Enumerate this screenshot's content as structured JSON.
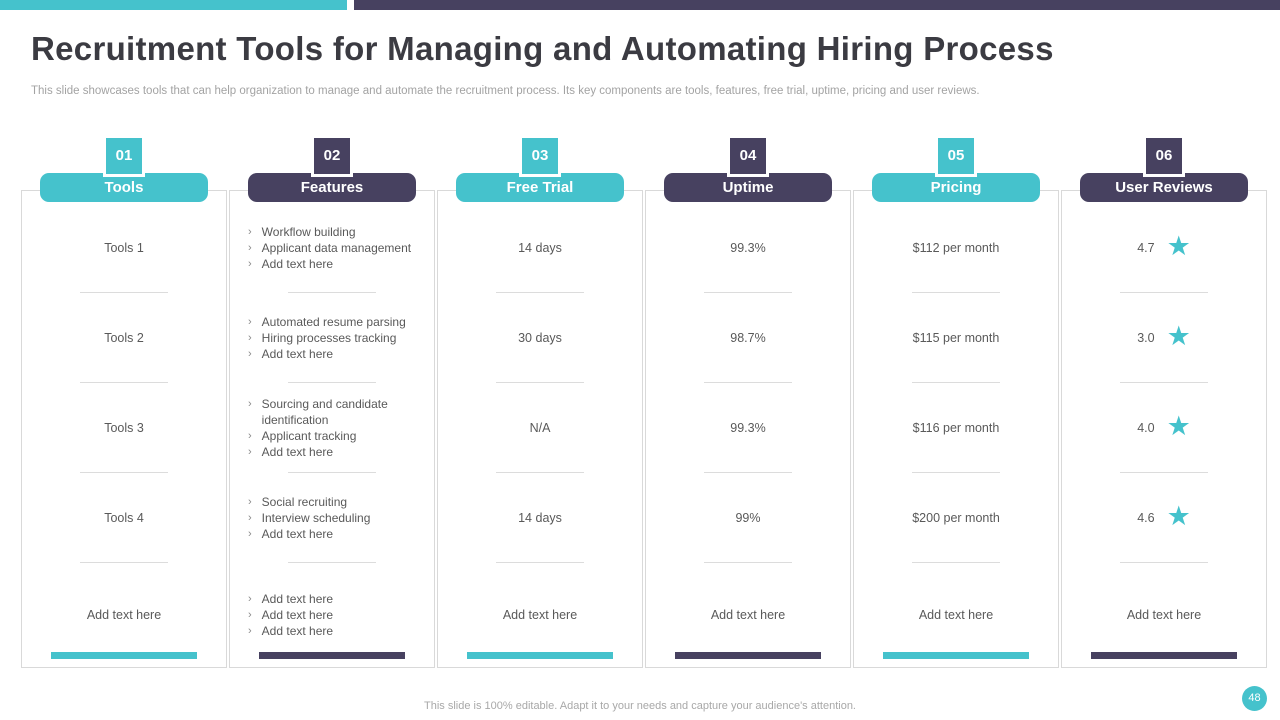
{
  "colors": {
    "teal": "#45C2CC",
    "navy": "#474160"
  },
  "glyphs": {
    "bullet": "›",
    "star": "★"
  },
  "header": {
    "title": "Recruitment Tools for Managing and Automating Hiring Process",
    "subtitle": "This slide showcases tools that can help organization to manage and automate the recruitment process. Its key components are tools, features, free trial, uptime, pricing and user reviews."
  },
  "columns": [
    {
      "number": "01",
      "label": "Tools",
      "accent": "teal",
      "rows": [
        {
          "type": "text",
          "text": "Tools 1"
        },
        {
          "type": "text",
          "text": "Tools 2"
        },
        {
          "type": "text",
          "text": "Tools 3"
        },
        {
          "type": "text",
          "text": "Tools 4"
        },
        {
          "type": "text",
          "text": "Add text here"
        }
      ]
    },
    {
      "number": "02",
      "label": "Features",
      "accent": "navy",
      "rows": [
        {
          "type": "bullets",
          "items": [
            "Workflow building",
            "Applicant data management",
            "Add text here"
          ]
        },
        {
          "type": "bullets",
          "items": [
            "Automated resume parsing",
            "Hiring processes tracking",
            "Add text here"
          ]
        },
        {
          "type": "bullets",
          "items": [
            "Sourcing and candidate identification",
            "Applicant tracking",
            "Add text here"
          ]
        },
        {
          "type": "bullets",
          "items": [
            "Social recruiting",
            "Interview scheduling",
            "Add text here"
          ]
        },
        {
          "type": "bullets",
          "items": [
            "Add text here",
            "Add text here",
            "Add text here"
          ]
        }
      ]
    },
    {
      "number": "03",
      "label": "Free Trial",
      "accent": "teal",
      "rows": [
        {
          "type": "text",
          "text": "14 days"
        },
        {
          "type": "text",
          "text": "30 days"
        },
        {
          "type": "text",
          "text": "N/A"
        },
        {
          "type": "text",
          "text": "14 days"
        },
        {
          "type": "text",
          "text": "Add text here"
        }
      ]
    },
    {
      "number": "04",
      "label": "Uptime",
      "accent": "navy",
      "rows": [
        {
          "type": "text",
          "text": "99.3%"
        },
        {
          "type": "text",
          "text": "98.7%"
        },
        {
          "type": "text",
          "text": "99.3%"
        },
        {
          "type": "text",
          "text": "99%"
        },
        {
          "type": "text",
          "text": "Add text here"
        }
      ]
    },
    {
      "number": "05",
      "label": "Pricing",
      "accent": "teal",
      "rows": [
        {
          "type": "text",
          "text": "$112 per month"
        },
        {
          "type": "text",
          "text": "$115 per month"
        },
        {
          "type": "text",
          "text": "$116 per month"
        },
        {
          "type": "text",
          "text": "$200 per month"
        },
        {
          "type": "text",
          "text": "Add text here"
        }
      ]
    },
    {
      "number": "06",
      "label": "User Reviews",
      "accent": "navy",
      "rows": [
        {
          "type": "rating",
          "value": "4.7"
        },
        {
          "type": "rating",
          "value": "3.0"
        },
        {
          "type": "rating",
          "value": "4.0"
        },
        {
          "type": "rating",
          "value": "4.6"
        },
        {
          "type": "text",
          "text": "Add text here"
        }
      ]
    }
  ],
  "footer": {
    "note": "This slide is 100% editable.  Adapt it to your needs and capture your audience's attention.",
    "page_number": "48"
  }
}
